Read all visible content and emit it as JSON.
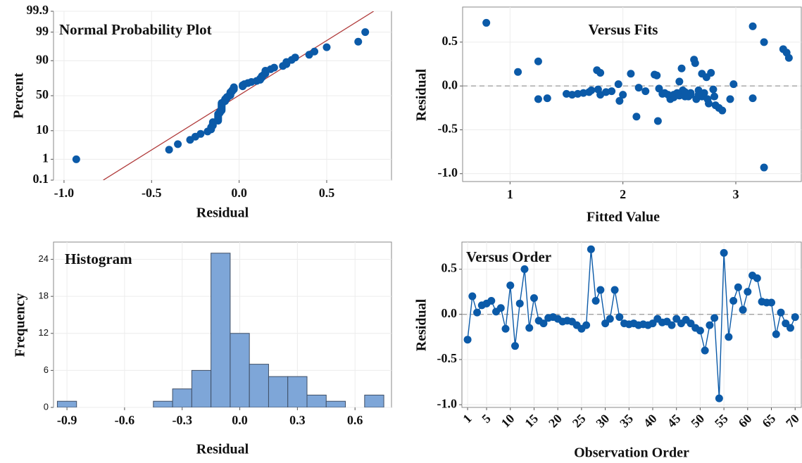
{
  "chart_data": [
    {
      "type": "probability",
      "title": "Normal Probability Plot",
      "xlabel": "Residual",
      "ylabel": "Percent",
      "yscale": "probability",
      "grid": true,
      "color": "#0b5aa8",
      "x": [
        -0.93,
        -0.4,
        -0.35,
        -0.28,
        -0.25,
        -0.22,
        -0.18,
        -0.16,
        -0.16,
        -0.15,
        -0.15,
        -0.15,
        -0.12,
        -0.12,
        -0.12,
        -0.12,
        -0.12,
        -0.12,
        -0.11,
        -0.11,
        -0.1,
        -0.1,
        -0.1,
        -0.1,
        -0.1,
        -0.1,
        -0.1,
        -0.1,
        -0.09,
        -0.08,
        -0.08,
        -0.08,
        -0.07,
        -0.07,
        -0.06,
        -0.05,
        -0.05,
        -0.05,
        -0.05,
        -0.04,
        -0.04,
        -0.03,
        -0.03,
        -0.03,
        0.02,
        0.02,
        0.03,
        0.05,
        0.07,
        0.1,
        0.12,
        0.12,
        0.13,
        0.13,
        0.14,
        0.15,
        0.15,
        0.15,
        0.18,
        0.2,
        0.25,
        0.27,
        0.27,
        0.3,
        0.32,
        0.4,
        0.43,
        0.5,
        0.68,
        0.72
      ],
      "values": [
        1.0,
        2.4,
        3.8,
        5.3,
        6.7,
        8.1,
        9.5,
        10.9,
        12.4,
        13.8,
        15.2,
        16.6,
        18.0,
        19.5,
        20.9,
        22.3,
        23.7,
        25.1,
        26.6,
        28.0,
        29.4,
        30.8,
        32.2,
        33.7,
        35.1,
        36.5,
        37.9,
        39.3,
        40.8,
        42.2,
        43.6,
        45.0,
        46.5,
        47.9,
        49.3,
        50.7,
        52.1,
        53.6,
        55.0,
        56.4,
        57.8,
        59.2,
        60.7,
        62.1,
        63.5,
        64.9,
        66.3,
        67.8,
        69.2,
        70.6,
        72.0,
        73.4,
        74.9,
        76.3,
        77.7,
        79.1,
        80.5,
        82.0,
        83.4,
        84.8,
        86.2,
        87.6,
        89.1,
        90.5,
        91.9,
        93.3,
        94.7,
        96.2,
        97.6,
        99.0
      ],
      "reference_line": {
        "x": [
          -0.776,
          0.768
        ],
        "y": [
          0.1,
          99.9
        ],
        "color": "#b03a3a"
      },
      "xlim": [
        -1.06,
        0.87
      ],
      "xticks": [
        {
          "value": -1,
          "label": "-1.0"
        },
        -0.5,
        {
          "value": 0,
          "label": "0.0"
        },
        0.5
      ],
      "ylim": [
        0.1,
        99.9
      ],
      "yticks": [
        0.1,
        1,
        10,
        50,
        90,
        99,
        99.9
      ]
    },
    {
      "type": "scatter",
      "title": "Versus Fits",
      "xlabel": "Fitted Value",
      "ylabel": "Residual",
      "grid": true,
      "color": "#0b5aa8",
      "hline": 0,
      "x": [
        0.79,
        1.07,
        1.25,
        1.25,
        1.33,
        1.5,
        1.55,
        1.6,
        1.65,
        1.72,
        1.77,
        1.78,
        1.8,
        1.8,
        1.85,
        1.9,
        1.96,
        1.97,
        2.0,
        2.07,
        2.12,
        2.14,
        2.28,
        2.3,
        2.31,
        2.32,
        2.37,
        2.42,
        2.45,
        2.48,
        2.5,
        2.52,
        2.53,
        2.55,
        2.6,
        2.63,
        2.64,
        2.65,
        2.67,
        2.7,
        2.72,
        2.74,
        2.76,
        2.78,
        2.8,
        2.81,
        2.85,
        2.88,
        2.95,
        2.98,
        3.15,
        3.15,
        3.25,
        3.25,
        3.42,
        3.45,
        3.47,
        2.6,
        2.58,
        2.45,
        2.7,
        2.67,
        2.5,
        2.35,
        2.2,
        2.75,
        2.82,
        1.7,
        2.55,
        2.4
      ],
      "values": [
        0.72,
        0.16,
        0.28,
        -0.15,
        -0.14,
        -0.09,
        -0.1,
        -0.09,
        -0.08,
        -0.05,
        0.18,
        -0.04,
        0.15,
        -0.1,
        -0.07,
        -0.06,
        0.02,
        -0.17,
        -0.1,
        0.14,
        -0.35,
        -0.02,
        0.13,
        0.12,
        -0.4,
        -0.03,
        -0.08,
        -0.15,
        -0.1,
        -0.08,
        0.05,
        0.2,
        -0.05,
        -0.12,
        -0.1,
        0.3,
        0.26,
        -0.15,
        -0.05,
        -0.12,
        -0.08,
        0.1,
        -0.2,
        0.15,
        -0.04,
        -0.12,
        -0.25,
        -0.28,
        -0.15,
        0.02,
        0.68,
        -0.14,
        0.5,
        -0.93,
        0.42,
        0.38,
        0.32,
        -0.08,
        -0.12,
        -0.13,
        0.14,
        -0.1,
        -0.11,
        -0.09,
        -0.06,
        -0.15,
        -0.22,
        -0.07,
        -0.07,
        -0.1
      ],
      "xlim": [
        0.58,
        3.58
      ],
      "xticks": [
        1,
        2,
        3
      ],
      "ylim": [
        -1.09,
        0.9
      ],
      "yticks": [
        0.5,
        {
          "value": 0,
          "label": "0.0"
        },
        -0.5,
        {
          "value": -1,
          "label": "-1.0"
        }
      ]
    },
    {
      "type": "histogram",
      "title": "Histogram",
      "xlabel": "Residual",
      "ylabel": "Frequency",
      "grid": true,
      "color": "#7ea6d8",
      "bins": [
        -0.95,
        -0.85,
        -0.75,
        -0.65,
        -0.55,
        -0.45,
        -0.35,
        -0.25,
        -0.15,
        -0.05,
        0.05,
        0.15,
        0.25,
        0.35,
        0.45,
        0.55,
        0.65,
        0.75
      ],
      "values": [
        1,
        0,
        0,
        0,
        0,
        1,
        3,
        6,
        25,
        12,
        7,
        5,
        5,
        2,
        1,
        0,
        2
      ],
      "xlim": [
        -0.97,
        0.79
      ],
      "xticks": [
        -0.9,
        -0.6,
        -0.3,
        {
          "value": 0,
          "label": "0.0"
        },
        0.3,
        0.6
      ],
      "ylim": [
        0,
        26.8
      ],
      "yticks": [
        0,
        6,
        12,
        18,
        24
      ]
    },
    {
      "type": "line",
      "title": "Versus Order",
      "xlabel": "Observation Order",
      "ylabel": "Residual",
      "grid": true,
      "color": "#0b5aa8",
      "hline": 0,
      "x": [
        1,
        2,
        3,
        4,
        5,
        6,
        7,
        8,
        9,
        10,
        11,
        12,
        13,
        14,
        15,
        16,
        17,
        18,
        19,
        20,
        21,
        22,
        23,
        24,
        25,
        26,
        27,
        28,
        29,
        30,
        31,
        32,
        33,
        34,
        35,
        36,
        37,
        38,
        39,
        40,
        41,
        42,
        43,
        44,
        45,
        46,
        47,
        48,
        49,
        50,
        51,
        52,
        53,
        54,
        55,
        56,
        57,
        58,
        59,
        60,
        61,
        62,
        63,
        64,
        65,
        66,
        67,
        68,
        69,
        70
      ],
      "values": [
        -0.28,
        0.2,
        0.02,
        0.1,
        0.12,
        0.15,
        0.03,
        0.07,
        -0.16,
        0.32,
        -0.35,
        0.12,
        0.5,
        -0.15,
        0.18,
        -0.07,
        -0.1,
        -0.04,
        -0.03,
        -0.05,
        -0.08,
        -0.07,
        -0.08,
        -0.12,
        -0.16,
        -0.12,
        0.72,
        0.15,
        0.27,
        -0.1,
        -0.05,
        0.27,
        -0.03,
        -0.1,
        -0.11,
        -0.1,
        -0.12,
        -0.11,
        -0.12,
        -0.1,
        -0.05,
        -0.09,
        -0.08,
        -0.12,
        -0.05,
        -0.1,
        -0.06,
        -0.1,
        -0.15,
        -0.18,
        -0.4,
        -0.12,
        -0.04,
        -0.93,
        0.68,
        -0.25,
        0.15,
        0.3,
        0.05,
        0.25,
        0.43,
        0.4,
        0.14,
        0.13,
        0.13,
        -0.22,
        0.02,
        -0.1,
        -0.15,
        -0.03
      ],
      "xlim": [
        -0.2,
        71.3
      ],
      "xticks": [
        1,
        5,
        10,
        15,
        20,
        25,
        30,
        35,
        40,
        45,
        50,
        55,
        60,
        65,
        70
      ],
      "ylim": [
        -1.03,
        0.8
      ],
      "yticks": [
        0.5,
        {
          "value": 0,
          "label": "0.0"
        },
        -0.5,
        {
          "value": -1,
          "label": "-1.0"
        }
      ]
    }
  ]
}
